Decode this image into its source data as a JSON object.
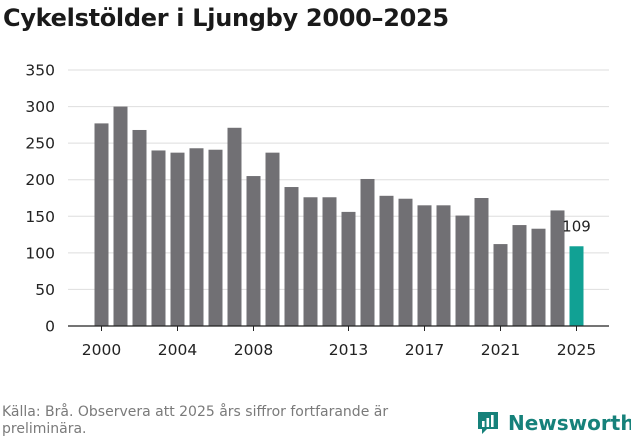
{
  "header": {
    "title": "Cykelstölder i Ljungby 2000–2025"
  },
  "chart_data": {
    "type": "bar",
    "title": "Cykelstölder i Ljungby 2000–2025",
    "xlabel": "",
    "ylabel": "",
    "categories": [
      "2000",
      "2001",
      "2002",
      "2003",
      "2004",
      "2005",
      "2006",
      "2007",
      "2008",
      "2009",
      "2010",
      "2011",
      "2012",
      "2013",
      "2014",
      "2015",
      "2016",
      "2017",
      "2018",
      "2019",
      "2020",
      "2021",
      "2022",
      "2023",
      "2024",
      "2025"
    ],
    "x_tick_labels": [
      "2000",
      "2004",
      "2008",
      "2013",
      "2017",
      "2021",
      "2025"
    ],
    "values": [
      277,
      300,
      268,
      240,
      237,
      243,
      241,
      271,
      205,
      237,
      190,
      176,
      176,
      156,
      201,
      178,
      174,
      165,
      165,
      151,
      175,
      112,
      138,
      133,
      158,
      109
    ],
    "y_ticks": [
      0,
      50,
      100,
      150,
      200,
      250,
      300,
      350
    ],
    "ylim": [
      0,
      350
    ],
    "grid": true,
    "highlight_index": 25,
    "highlight_label": "109",
    "colors": {
      "bar": "#717074",
      "highlight": "#11a194",
      "grid": "#dedede",
      "axis": "#222222"
    }
  },
  "footer": {
    "source": "Källa: Brå. Observera att 2025 års siffror fortfarande är preliminära.",
    "logo_text": "Newsworthy",
    "logo_color": "#16817a"
  }
}
